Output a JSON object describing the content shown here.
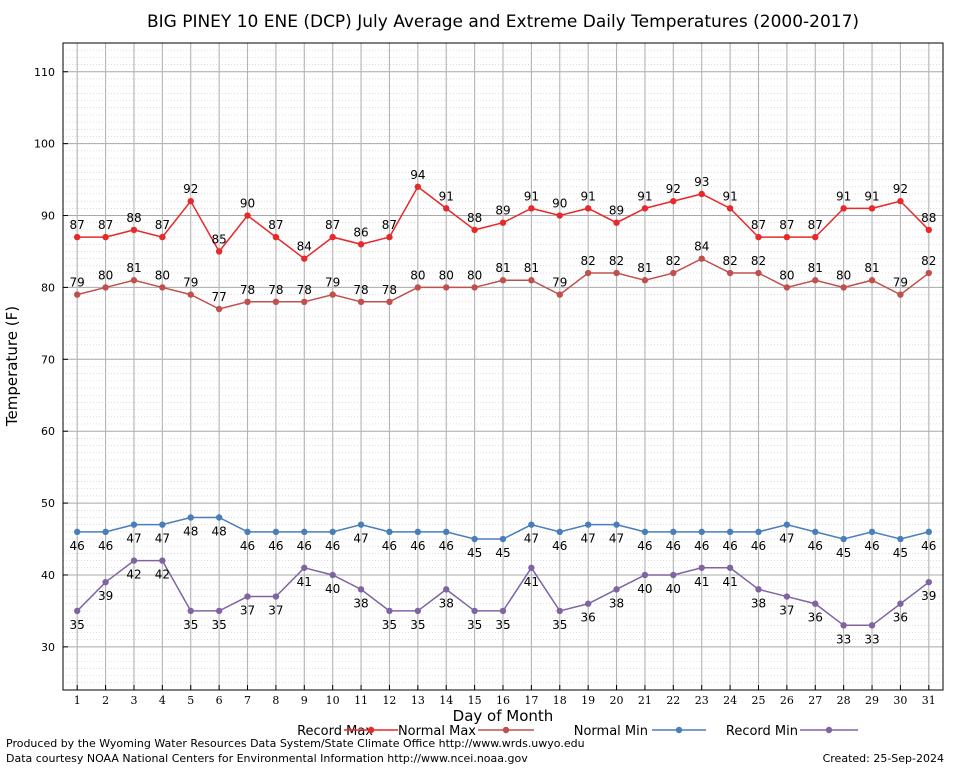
{
  "chart_data": {
    "type": "line",
    "title": "BIG PINEY 10 ENE (DCP) July Average and Extreme Daily Temperatures (2000-2017)",
    "xlabel": "Day of Month",
    "ylabel": "Temperature (F)",
    "x": [
      1,
      2,
      3,
      4,
      5,
      6,
      7,
      8,
      9,
      10,
      11,
      12,
      13,
      14,
      15,
      16,
      17,
      18,
      19,
      20,
      21,
      22,
      23,
      24,
      25,
      26,
      27,
      28,
      29,
      30,
      31
    ],
    "xlim": [
      0.5,
      31.5
    ],
    "ylim": [
      24,
      114
    ],
    "yticks": [
      30,
      40,
      50,
      60,
      70,
      80,
      90,
      100,
      110
    ],
    "grid": true,
    "legend_position": "bottom",
    "series": [
      {
        "name": "Record Max",
        "color": "#e8292a",
        "label_pos": "above",
        "values": [
          87,
          87,
          88,
          87,
          92,
          85,
          90,
          87,
          84,
          87,
          86,
          87,
          94,
          91,
          88,
          89,
          91,
          90,
          91,
          89,
          91,
          92,
          93,
          91,
          87,
          87,
          87,
          91,
          91,
          92,
          88
        ]
      },
      {
        "name": "Normal Max",
        "color": "#c0504d",
        "label_pos": "above",
        "values": [
          79,
          80,
          81,
          80,
          79,
          77,
          78,
          78,
          78,
          79,
          78,
          78,
          80,
          80,
          80,
          81,
          81,
          79,
          82,
          82,
          81,
          82,
          84,
          82,
          82,
          80,
          81,
          80,
          81,
          79,
          82
        ]
      },
      {
        "name": "Normal Min",
        "color": "#4a7ebb",
        "label_pos": "below",
        "values": [
          46,
          46,
          47,
          47,
          48,
          48,
          46,
          46,
          46,
          46,
          47,
          46,
          46,
          46,
          45,
          45,
          47,
          46,
          47,
          47,
          46,
          46,
          46,
          46,
          46,
          47,
          46,
          45,
          46,
          45,
          46
        ]
      },
      {
        "name": "Record Min",
        "color": "#8064a2",
        "label_pos": "below",
        "values": [
          35,
          39,
          42,
          42,
          35,
          35,
          37,
          37,
          41,
          40,
          38,
          35,
          35,
          38,
          35,
          35,
          41,
          35,
          36,
          38,
          40,
          40,
          41,
          41,
          38,
          37,
          36,
          33,
          33,
          36,
          39
        ]
      }
    ]
  },
  "footer": {
    "credit_line1": "Produced by the Wyoming Water Resources Data System/State Climate Office http://www.wrds.uwyo.edu",
    "credit_line2": "Data courtesy NOAA National Centers for Environmental Information http://www.ncei.noaa.gov",
    "created": "Created:  25-Sep-2024"
  }
}
